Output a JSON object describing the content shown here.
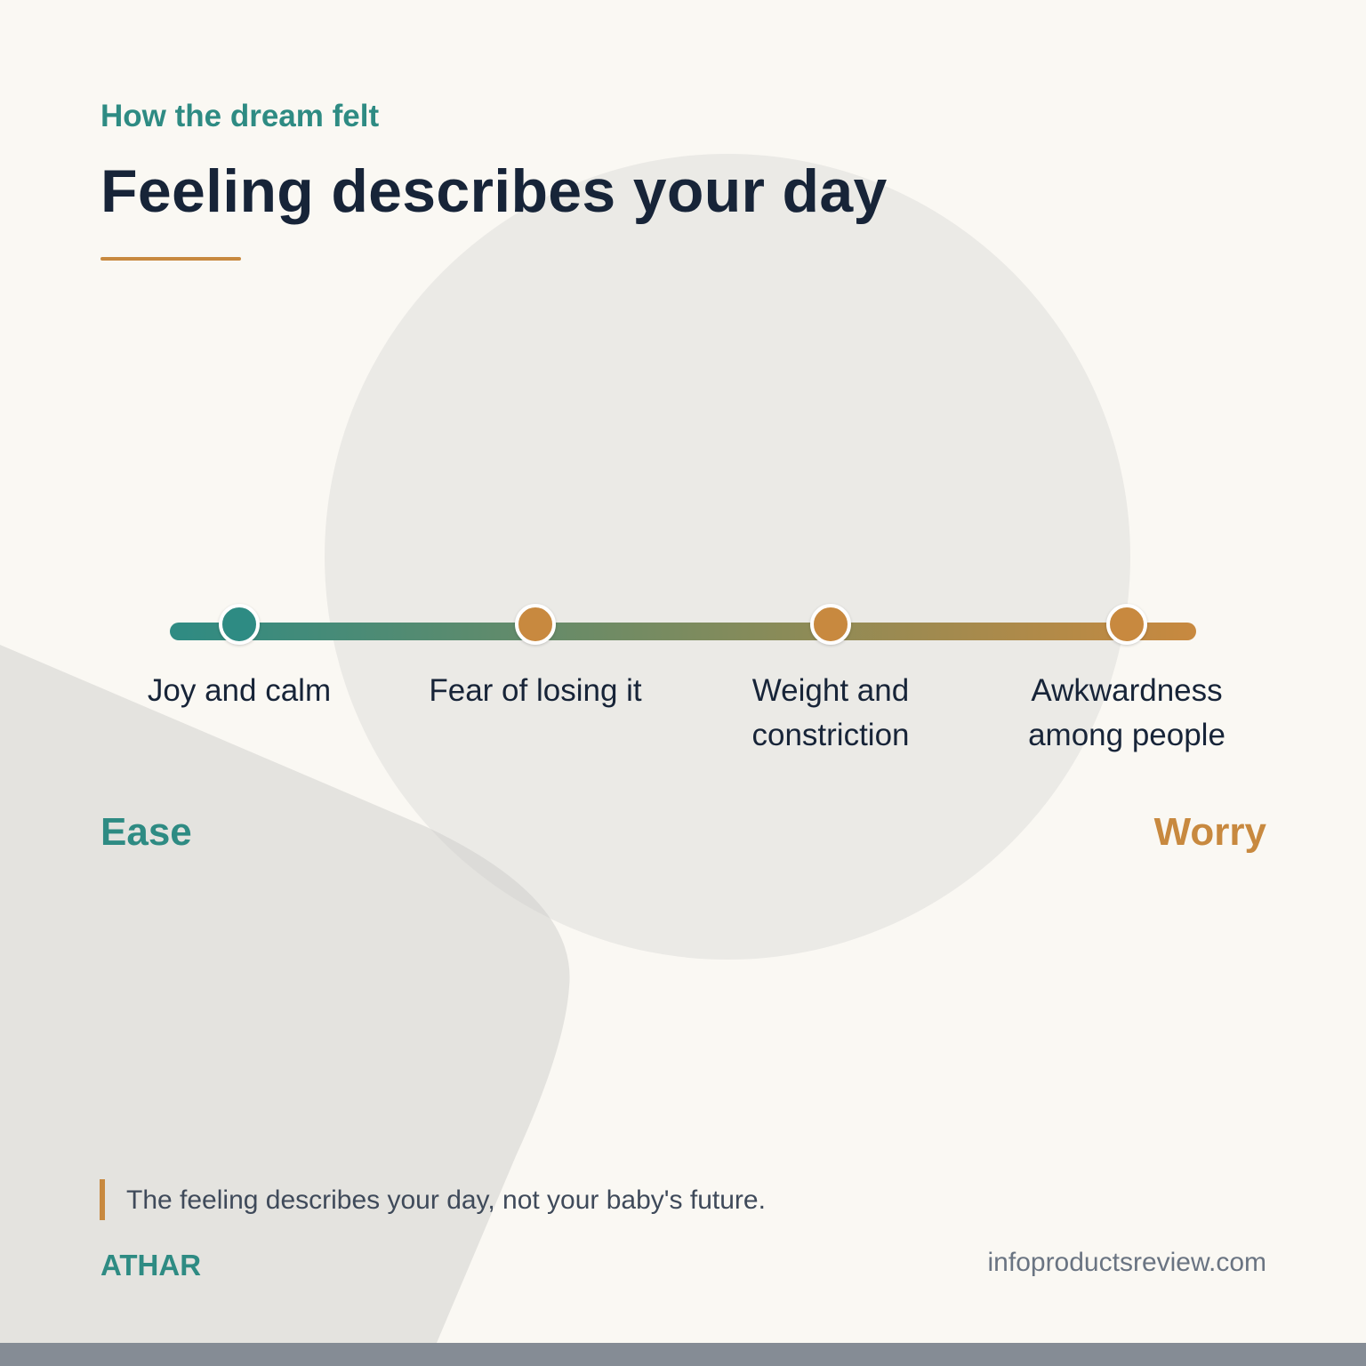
{
  "header": {
    "eyebrow": "How the dream felt",
    "title": "Feeling describes your day"
  },
  "scale": {
    "steps": [
      {
        "label": "Joy and calm",
        "color": "#2E8B83"
      },
      {
        "label": "Fear of losing it",
        "color": "#C8893F"
      },
      {
        "label": "Weight and constriction",
        "color": "#C8893F"
      },
      {
        "label": "Awkwardness among people",
        "color": "#C8893F"
      }
    ],
    "start_label": "Ease",
    "end_label": "Worry",
    "start_color": "#2E8B83",
    "end_color": "#C8893F"
  },
  "footer": {
    "quote": "The feeling describes your day, not your baby's future.",
    "brand": "ATHAR",
    "site": "infoproductsreview.com"
  }
}
